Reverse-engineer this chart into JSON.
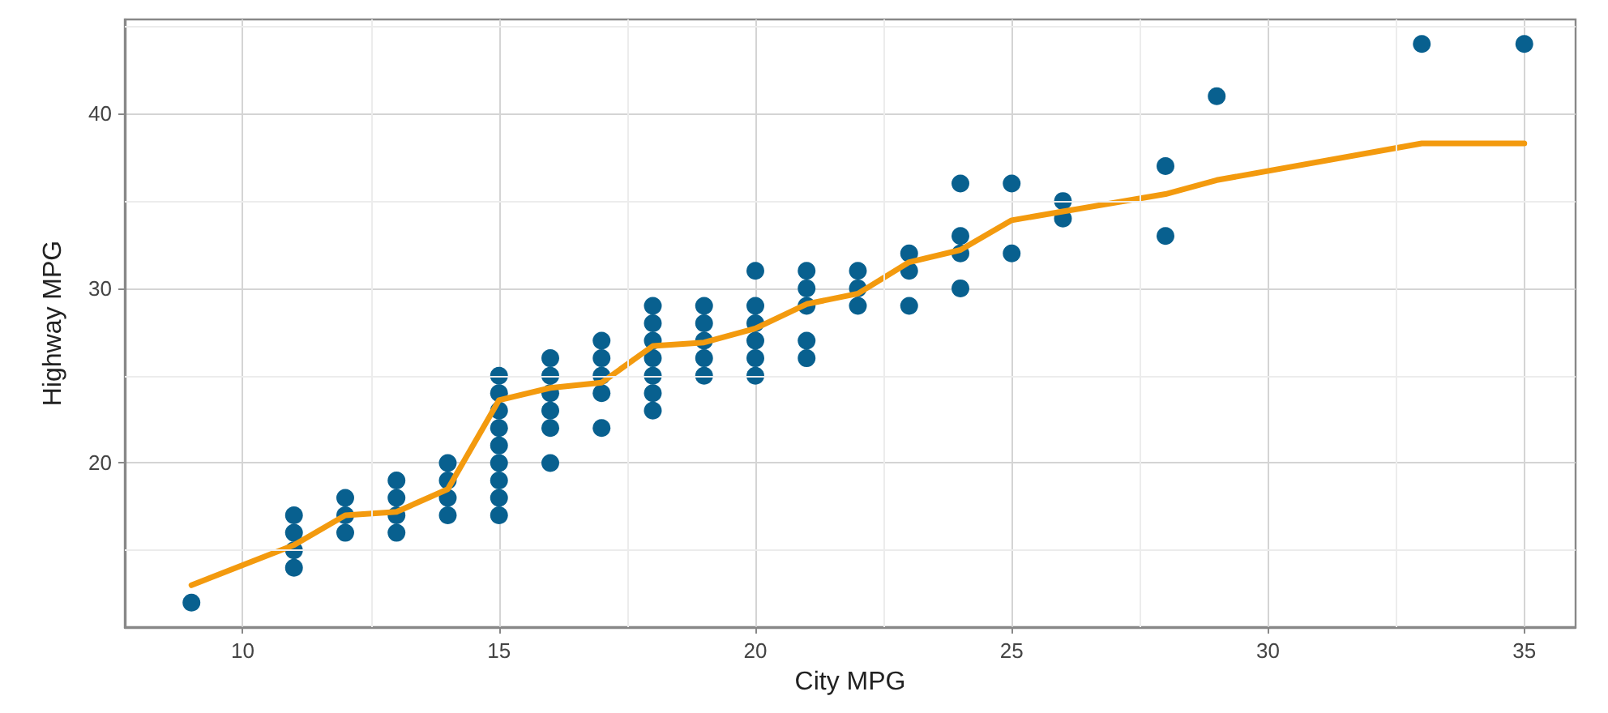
{
  "chart_data": {
    "type": "scatter",
    "xlabel": "City MPG",
    "ylabel": "Highway MPG",
    "xlim": [
      7.7,
      36.0
    ],
    "ylim": [
      10.6,
      45.4
    ],
    "xticks": [
      10,
      15,
      20,
      25,
      30,
      35
    ],
    "yticks": [
      20,
      30,
      40
    ],
    "grid": true,
    "marker": "circle",
    "series": [
      {
        "color": "#08608f",
        "x": [
          9,
          11,
          11,
          11,
          11,
          12,
          12,
          12,
          13,
          13,
          13,
          13,
          14,
          14,
          14,
          14,
          15,
          15,
          15,
          15,
          15,
          15,
          15,
          15,
          15,
          16,
          16,
          16,
          16,
          16,
          16,
          17,
          17,
          17,
          17,
          17,
          18,
          18,
          18,
          18,
          18,
          18,
          18,
          19,
          19,
          19,
          19,
          19,
          20,
          20,
          20,
          20,
          20,
          20,
          21,
          21,
          21,
          21,
          21,
          22,
          22,
          22,
          23,
          23,
          23,
          24,
          24,
          24,
          24,
          25,
          25,
          26,
          26,
          28,
          28,
          29,
          33,
          35
        ],
        "values": [
          12,
          14,
          15,
          16,
          17,
          16,
          17,
          18,
          16,
          17,
          18,
          19,
          17,
          18,
          19,
          20,
          17,
          18,
          19,
          20,
          21,
          22,
          23,
          24,
          25,
          20,
          22,
          23,
          24,
          25,
          26,
          22,
          24,
          25,
          26,
          27,
          23,
          24,
          25,
          26,
          27,
          28,
          29,
          25,
          26,
          27,
          28,
          29,
          25,
          26,
          27,
          28,
          29,
          31,
          26,
          27,
          29,
          30,
          31,
          29,
          30,
          31,
          29,
          31,
          32,
          30,
          32,
          33,
          36,
          32,
          36,
          34,
          35,
          33,
          37,
          41,
          44,
          44
        ]
      },
      {
        "type": "line",
        "color": "#f39a0e",
        "line_style": "solid",
        "marker": "none",
        "x": [
          9,
          11,
          12,
          13,
          14,
          15,
          16,
          17,
          18,
          19,
          20,
          21,
          22,
          23,
          24,
          25,
          26,
          28,
          29,
          33,
          35
        ],
        "values": [
          13,
          15.3,
          17,
          17.2,
          18.5,
          23.6,
          24.3,
          24.6,
          26.7,
          26.9,
          27.7,
          29.1,
          29.7,
          31.5,
          32.2,
          33.9,
          34.4,
          35.4,
          36.2,
          38.3,
          38.3
        ]
      }
    ]
  }
}
